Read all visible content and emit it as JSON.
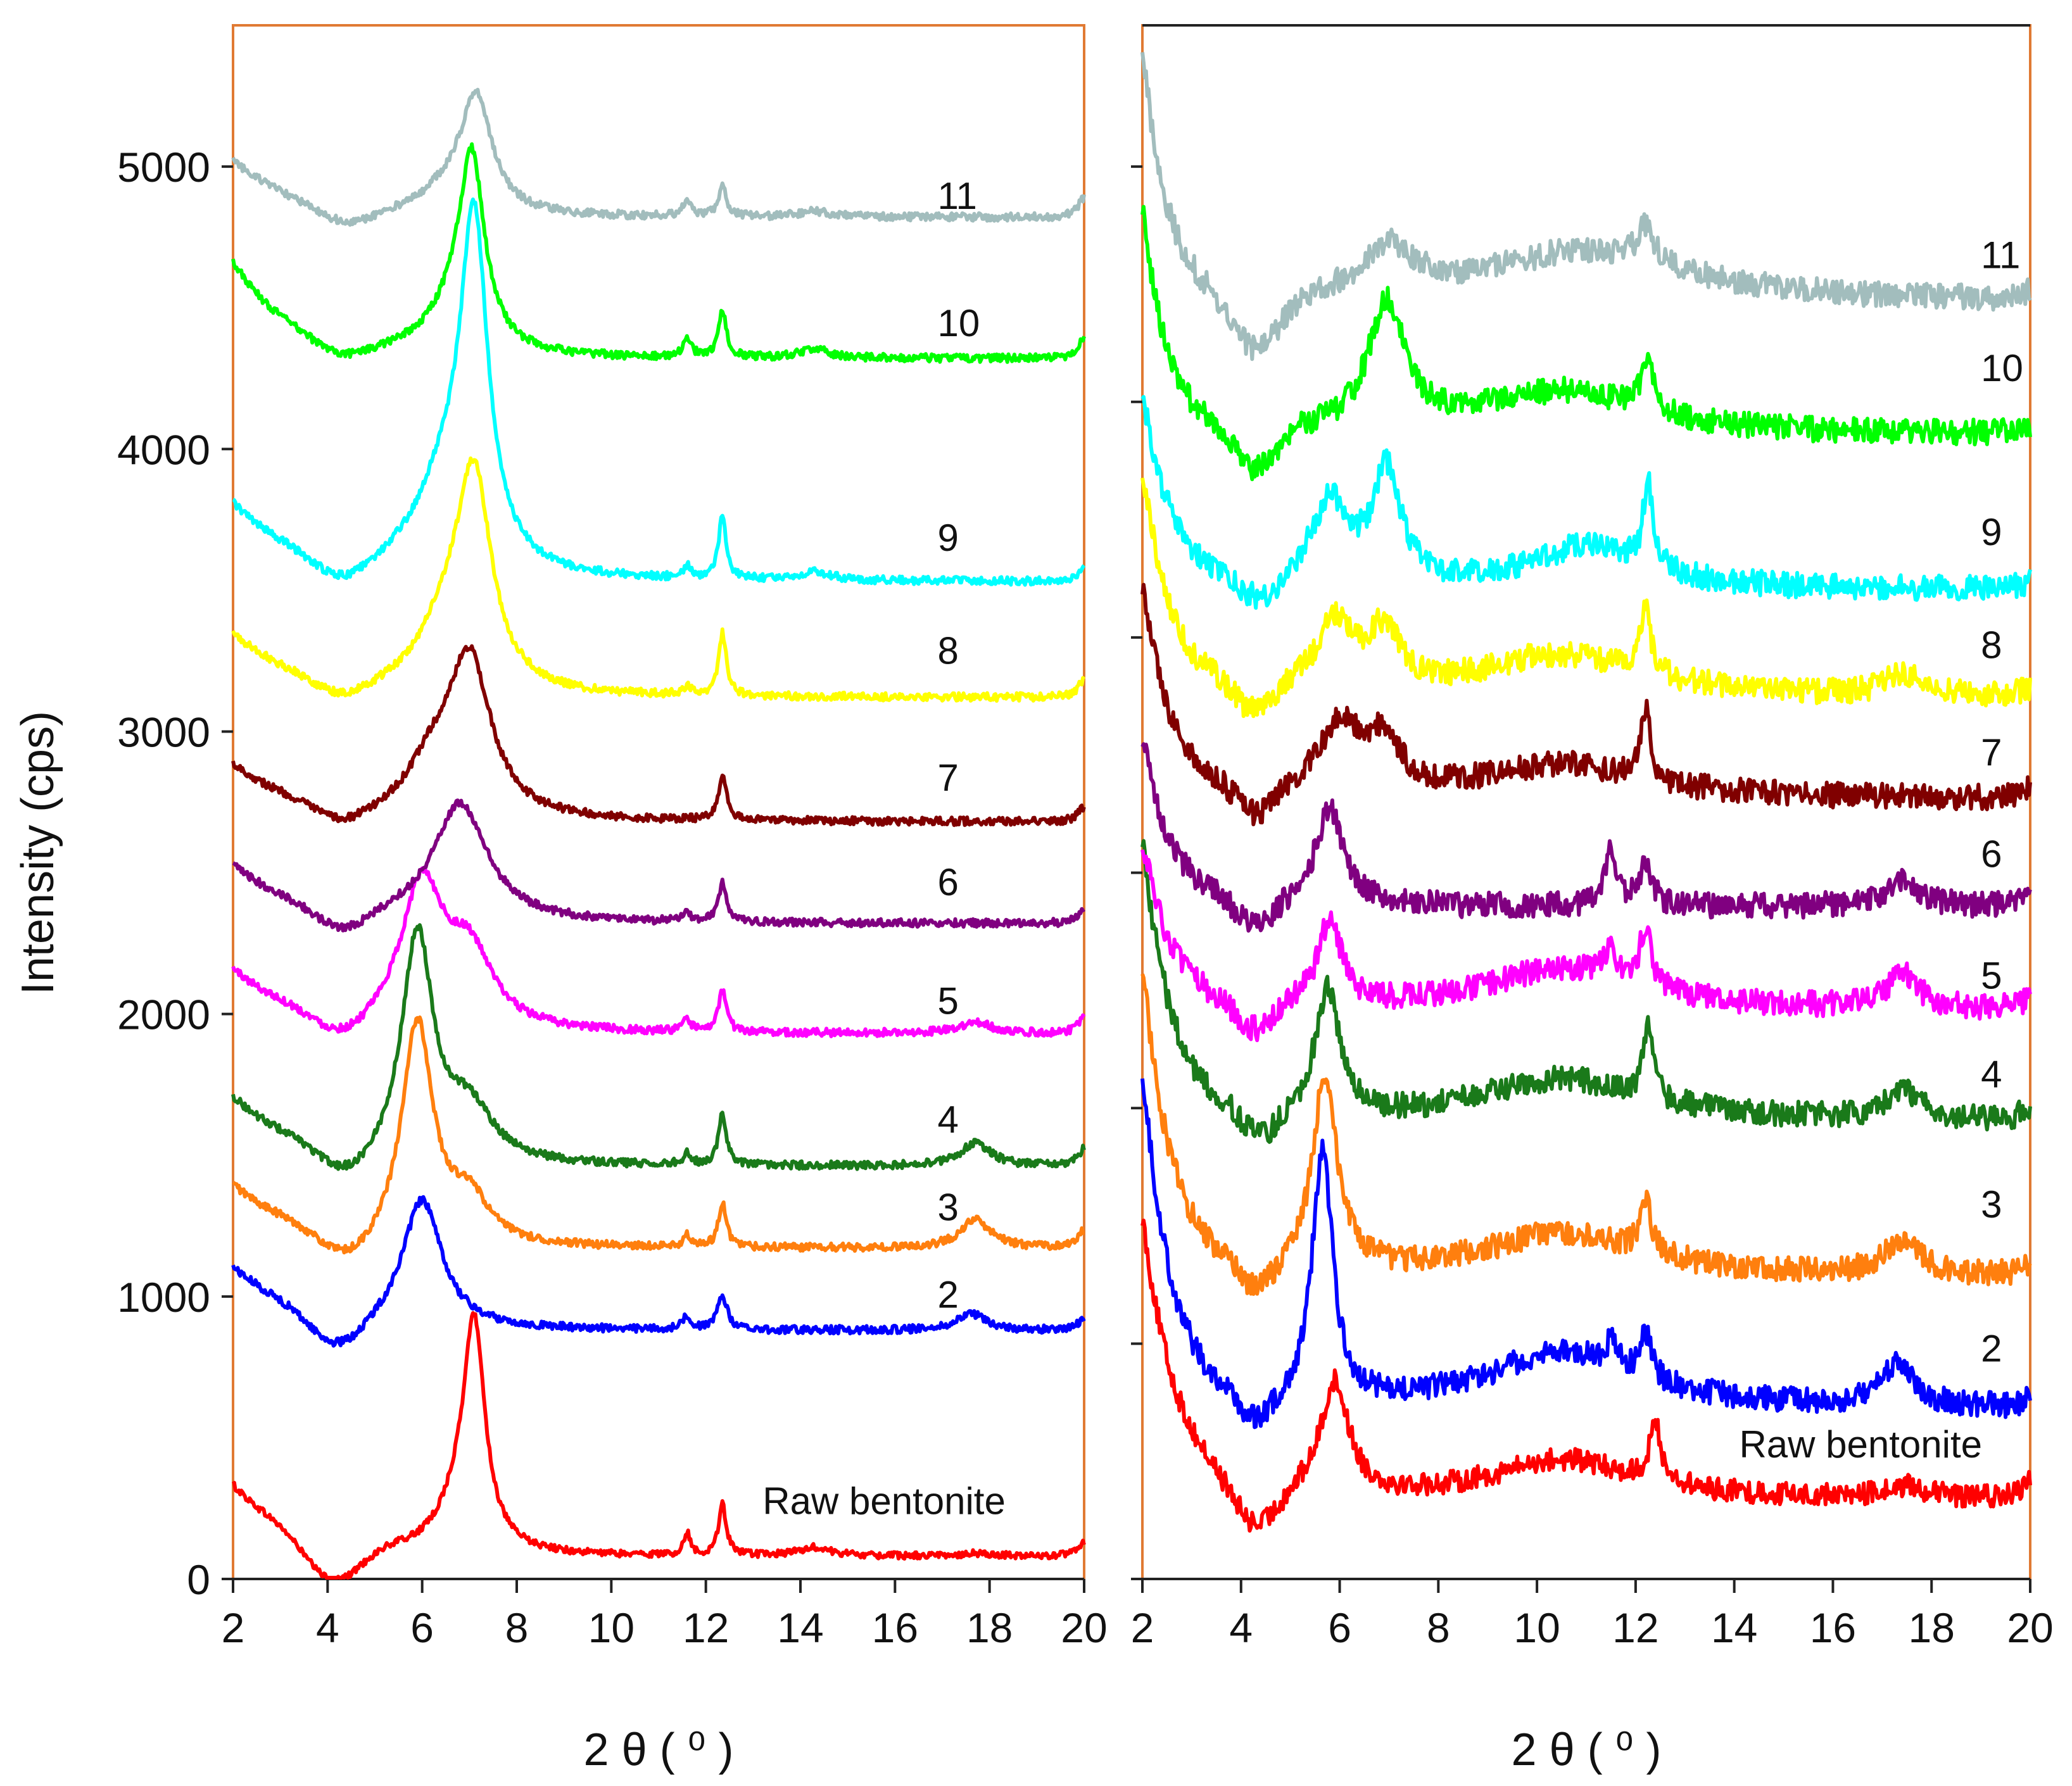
{
  "chart_data": [
    {
      "id": "left",
      "type": "line",
      "title": "",
      "xlabel": "2 θ ( ⁰ )",
      "ylabel": "Intensity (cps)",
      "xlim": [
        2,
        20
      ],
      "ylim": [
        0,
        5500
      ],
      "xticks": [
        2,
        4,
        6,
        8,
        10,
        12,
        14,
        16,
        18,
        20
      ],
      "yticks": [
        0,
        1000,
        2000,
        3000,
        4000,
        5000
      ],
      "grid": false,
      "frame_color": "#e07a33",
      "series": [
        {
          "name": "Raw bentonite",
          "color": "#ff0000",
          "label_x": 13.2,
          "label_y": 230,
          "base": 80,
          "tail": 250,
          "tail_w": 1.4,
          "dip": -150,
          "dip_x": 4.1,
          "dip_w": 0.8,
          "peaks": [
            [
              7.1,
              780,
              0.28
            ],
            [
              6.7,
              120,
              0.5
            ],
            [
              12.35,
              180,
              0.1
            ],
            [
              11.6,
              80,
              0.08
            ],
            [
              14.3,
              30,
              0.4
            ],
            [
              17.7,
              10,
              0.4
            ],
            [
              20,
              50,
              0.15
            ]
          ],
          "noise": 12
        },
        {
          "name": "2",
          "color": "#0000ff",
          "label_x": 16.9,
          "label_y": 960,
          "base": 880,
          "tail": 220,
          "tail_w": 1.4,
          "dip": -120,
          "dip_x": 4.2,
          "dip_w": 0.8,
          "peaks": [
            [
              6.0,
              450,
              0.5
            ],
            [
              12.35,
              120,
              0.12
            ],
            [
              11.6,
              50,
              0.1
            ],
            [
              17.6,
              60,
              0.35
            ],
            [
              20,
              40,
              0.15
            ]
          ],
          "noise": 14
        },
        {
          "name": "3",
          "color": "#ff7f0e",
          "label_x": 16.9,
          "label_y": 1270,
          "base": 1170,
          "tail": 220,
          "tail_w": 1.4,
          "dip": -100,
          "dip_x": 4.4,
          "dip_w": 0.8,
          "peaks": [
            [
              5.9,
              780,
              0.4
            ],
            [
              7.0,
              150,
              0.5
            ],
            [
              12.35,
              160,
              0.1
            ],
            [
              11.6,
              40,
              0.1
            ],
            [
              17.7,
              100,
              0.4
            ],
            [
              20,
              60,
              0.15
            ]
          ],
          "noise": 14
        },
        {
          "name": "4",
          "color": "#1a7a1a",
          "label_x": 16.9,
          "label_y": 1580,
          "base": 1460,
          "tail": 240,
          "tail_w": 1.4,
          "dip": -100,
          "dip_x": 4.4,
          "dip_w": 0.8,
          "peaks": [
            [
              5.9,
              800,
              0.4
            ],
            [
              7.0,
              180,
              0.6
            ],
            [
              12.35,
              180,
              0.1
            ],
            [
              11.6,
              40,
              0.1
            ],
            [
              17.7,
              80,
              0.4
            ],
            [
              20,
              60,
              0.15
            ]
          ],
          "noise": 14
        },
        {
          "name": "5",
          "color": "#ff00ff",
          "label_x": 16.9,
          "label_y": 2000,
          "base": 1930,
          "tail": 220,
          "tail_w": 1.4,
          "dip": -80,
          "dip_x": 4.3,
          "dip_w": 0.8,
          "peaks": [
            [
              6.0,
              500,
              0.55
            ],
            [
              7.0,
              250,
              0.6
            ],
            [
              12.35,
              150,
              0.1
            ],
            [
              11.6,
              40,
              0.1
            ],
            [
              17.7,
              40,
              0.4
            ],
            [
              20,
              60,
              0.15
            ]
          ],
          "noise": 14
        },
        {
          "name": "6",
          "color": "#800080",
          "label_x": 16.9,
          "label_y": 2420,
          "base": 2320,
          "tail": 200,
          "tail_w": 1.4,
          "dip": -80,
          "dip_x": 4.3,
          "dip_w": 0.8,
          "peaks": [
            [
              6.8,
              420,
              0.7
            ],
            [
              12.35,
              140,
              0.1
            ],
            [
              11.6,
              30,
              0.1
            ],
            [
              20,
              50,
              0.15
            ]
          ],
          "noise": 14
        },
        {
          "name": "7",
          "color": "#800000",
          "label_x": 16.9,
          "label_y": 2790,
          "base": 2680,
          "tail": 200,
          "tail_w": 1.4,
          "dip": -60,
          "dip_x": 4.3,
          "dip_w": 0.8,
          "peaks": [
            [
              7.0,
              560,
              0.55
            ],
            [
              6.2,
              150,
              0.6
            ],
            [
              12.35,
              160,
              0.1
            ],
            [
              20,
              50,
              0.15
            ]
          ],
          "noise": 14
        },
        {
          "name": "8",
          "color": "#ffff00",
          "label_x": 16.9,
          "label_y": 3240,
          "base": 3120,
          "tail": 220,
          "tail_w": 1.4,
          "dip": -60,
          "dip_x": 4.3,
          "dip_w": 0.8,
          "peaks": [
            [
              7.1,
              720,
              0.45
            ],
            [
              6.5,
              200,
              0.7
            ],
            [
              12.35,
              220,
              0.1
            ],
            [
              11.6,
              30,
              0.1
            ],
            [
              20,
              60,
              0.15
            ]
          ],
          "noise": 14
        },
        {
          "name": "9",
          "color": "#00ffff",
          "label_x": 16.9,
          "label_y": 3640,
          "base": 3530,
          "tail": 270,
          "tail_w": 1.4,
          "dip": -80,
          "dip_x": 4.3,
          "dip_w": 0.8,
          "peaks": [
            [
              7.1,
              1150,
              0.35
            ],
            [
              6.5,
              300,
              0.8
            ],
            [
              12.35,
              220,
              0.1
            ],
            [
              11.6,
              40,
              0.1
            ],
            [
              14.3,
              30,
              0.4
            ],
            [
              20,
              50,
              0.15
            ]
          ],
          "noise": 14
        },
        {
          "name": "10",
          "color": "#00ff00",
          "label_x": 16.9,
          "label_y": 4400,
          "base": 4320,
          "tail": 340,
          "tail_w": 1.2,
          "dip": -50,
          "dip_x": 4.3,
          "dip_w": 0.8,
          "peaks": [
            [
              7.05,
              620,
              0.32
            ],
            [
              6.7,
              150,
              0.7
            ],
            [
              12.35,
              170,
              0.1
            ],
            [
              11.6,
              70,
              0.1
            ],
            [
              14.3,
              30,
              0.4
            ],
            [
              20,
              70,
              0.15
            ]
          ],
          "noise": 14
        },
        {
          "name": "11",
          "color": "#a2bdbd",
          "label_x": 16.9,
          "label_y": 4850,
          "base": 4820,
          "tail": 200,
          "tail_w": 1.3,
          "dip": -60,
          "dip_x": 4.4,
          "dip_w": 0.9,
          "peaks": [
            [
              7.15,
              390,
              0.4
            ],
            [
              6.6,
              80,
              0.7
            ],
            [
              12.35,
              110,
              0.1
            ],
            [
              11.6,
              60,
              0.1
            ],
            [
              14.3,
              20,
              0.4
            ],
            [
              20,
              70,
              0.15
            ]
          ],
          "noise": 14
        }
      ]
    },
    {
      "id": "right",
      "type": "line",
      "title": "",
      "xlabel": "2 θ ( ⁰ )",
      "ylabel": "",
      "xlim": [
        2,
        20
      ],
      "ylim": [
        0,
        5500
      ],
      "xticks": [
        2,
        4,
        6,
        8,
        10,
        12,
        14,
        16,
        18,
        20
      ],
      "xtick_labels": [
        "2",
        "4",
        "6",
        "8",
        "10",
        "12",
        "14",
        "16",
        "18",
        "20"
      ],
      "yticks": [
        0,
        833,
        1667,
        2500,
        3333,
        4167,
        5000
      ],
      "grid": false,
      "frame_color": "#e07a33",
      "series": [
        {
          "name": "Raw bentonite",
          "color": "#ff0000",
          "label_x": 14.1,
          "label_y": 430,
          "base": 280,
          "tail": 1000,
          "tail_w": 0.7,
          "dip": -150,
          "dip_x": 4.3,
          "dip_w": 0.6,
          "peaks": [
            [
              5.9,
              400,
              0.35
            ],
            [
              10.5,
              140,
              1.8
            ],
            [
              12.4,
              200,
              0.15
            ],
            [
              17.5,
              40,
              0.5
            ],
            [
              20,
              60,
              0.2
            ]
          ],
          "noise": 40
        },
        {
          "name": "2",
          "color": "#0000ff",
          "label_x": 19.0,
          "label_y": 770,
          "base": 600,
          "tail": 1200,
          "tail_w": 0.6,
          "dip": -100,
          "dip_x": 4.3,
          "dip_w": 0.5,
          "peaks": [
            [
              5.65,
              900,
              0.25
            ],
            [
              10.5,
              200,
              1.9
            ],
            [
              12.2,
              150,
              0.15
            ],
            [
              11.5,
              80,
              0.15
            ],
            [
              17.3,
              150,
              0.4
            ],
            [
              20,
              30,
              0.2
            ]
          ],
          "noise": 45
        },
        {
          "name": "3",
          "color": "#ff7f0e",
          "label_x": 19.0,
          "label_y": 1280,
          "base": 1070,
          "tail": 1100,
          "tail_w": 0.6,
          "dip": -100,
          "dip_x": 4.3,
          "dip_w": 0.5,
          "peaks": [
            [
              5.7,
              700,
              0.3
            ],
            [
              10.5,
              150,
              2.0
            ],
            [
              12.2,
              180,
              0.15
            ],
            [
              17.4,
              120,
              0.4
            ],
            [
              20,
              40,
              0.2
            ]
          ],
          "noise": 45
        },
        {
          "name": "4",
          "color": "#1a7a1a",
          "label_x": 19.0,
          "label_y": 1740,
          "base": 1620,
          "tail": 1000,
          "tail_w": 0.6,
          "dip": -100,
          "dip_x": 4.4,
          "dip_w": 0.5,
          "peaks": [
            [
              5.75,
              450,
              0.3
            ],
            [
              10.5,
              150,
              2.0
            ],
            [
              12.25,
              250,
              0.12
            ],
            [
              17.4,
              110,
              0.4
            ],
            [
              20,
              40,
              0.2
            ]
          ],
          "noise": 45
        },
        {
          "name": "5",
          "color": "#ff00ff",
          "label_x": 19.0,
          "label_y": 2090,
          "base": 2010,
          "tail": 600,
          "tail_w": 0.6,
          "dip": -100,
          "dip_x": 4.3,
          "dip_w": 0.5,
          "peaks": [
            [
              5.8,
              300,
              0.3
            ],
            [
              10.5,
              150,
              2.0
            ],
            [
              12.2,
              200,
              0.15
            ],
            [
              11.5,
              100,
              0.15
            ],
            [
              17.4,
              120,
              0.4
            ],
            [
              20,
              40,
              0.2
            ]
          ],
          "noise": 45
        },
        {
          "name": "6",
          "color": "#800080",
          "label_x": 19.0,
          "label_y": 2520,
          "base": 2380,
          "tail": 600,
          "tail_w": 0.6,
          "dip": -100,
          "dip_x": 4.3,
          "dip_w": 0.5,
          "peaks": [
            [
              5.8,
              350,
              0.35
            ],
            [
              11.5,
              200,
              0.15
            ],
            [
              12.2,
              150,
              0.15
            ],
            [
              17.4,
              100,
              0.4
            ],
            [
              20,
              40,
              0.2
            ]
          ],
          "noise": 45
        },
        {
          "name": "7",
          "color": "#800000",
          "label_x": 19.0,
          "label_y": 2880,
          "base": 2760,
          "tail": 750,
          "tail_w": 0.6,
          "dip": -100,
          "dip_x": 4.3,
          "dip_w": 0.5,
          "peaks": [
            [
              6.0,
              250,
              0.5
            ],
            [
              6.9,
              180,
              0.4
            ],
            [
              10.5,
              120,
              2.0
            ],
            [
              12.2,
              250,
              0.12
            ],
            [
              20,
              30,
              0.2
            ]
          ],
          "noise": 45
        },
        {
          "name": "8",
          "color": "#ffff00",
          "label_x": 19.0,
          "label_y": 3260,
          "base": 3120,
          "tail": 800,
          "tail_w": 0.6,
          "dip": -100,
          "dip_x": 4.3,
          "dip_w": 0.5,
          "peaks": [
            [
              5.9,
              250,
              0.45
            ],
            [
              6.9,
              200,
              0.4
            ],
            [
              10.5,
              150,
              2.0
            ],
            [
              12.2,
              250,
              0.12
            ],
            [
              17.4,
              80,
              0.4
            ],
            [
              20,
              30,
              0.2
            ]
          ],
          "noise": 45
        },
        {
          "name": "9",
          "color": "#00ffff",
          "label_x": 19.0,
          "label_y": 3660,
          "base": 3500,
          "tail": 700,
          "tail_w": 0.6,
          "dip": -80,
          "dip_x": 4.4,
          "dip_w": 0.5,
          "peaks": [
            [
              5.8,
              300,
              0.45
            ],
            [
              6.95,
              400,
              0.35
            ],
            [
              11.0,
              150,
              1.5
            ],
            [
              12.25,
              300,
              0.12
            ],
            [
              20,
              30,
              0.2
            ]
          ],
          "noise": 45
        },
        {
          "name": "10",
          "color": "#00ff00",
          "label_x": 19.0,
          "label_y": 4240,
          "base": 4050,
          "tail": 800,
          "tail_w": 0.5,
          "dip": -150,
          "dip_x": 4.3,
          "dip_w": 0.6,
          "peaks": [
            [
              6.95,
              450,
              0.45
            ],
            [
              10.5,
              150,
              2.0
            ],
            [
              12.25,
              200,
              0.15
            ],
            [
              20,
              30,
              0.2
            ]
          ],
          "noise": 45
        },
        {
          "name": "11",
          "color": "#a2bdbd",
          "label_x": 19.0,
          "label_y": 4640,
          "base": 4520,
          "tail": 900,
          "tail_w": 0.5,
          "dip": -200,
          "dip_x": 4.3,
          "dip_w": 0.7,
          "peaks": [
            [
              7.0,
              170,
              0.6
            ],
            [
              11.0,
              180,
              2.5
            ],
            [
              12.2,
              120,
              0.2
            ],
            [
              20,
              30,
              0.2
            ]
          ],
          "noise": 45
        }
      ]
    }
  ]
}
